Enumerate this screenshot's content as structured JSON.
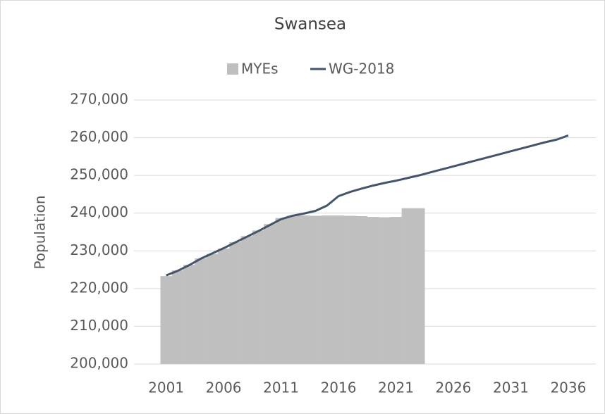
{
  "chart_data": {
    "type": "bar-line",
    "title": "Swansea",
    "y_label": "Population",
    "series": [
      {
        "name": "MYEs",
        "type": "bar",
        "color": "#bfbfbf",
        "x": [
          2001,
          2002,
          2003,
          2004,
          2005,
          2006,
          2007,
          2008,
          2009,
          2010,
          2011,
          2012,
          2013,
          2014,
          2015,
          2016,
          2017,
          2018,
          2019,
          2020,
          2021,
          2022,
          2023
        ],
        "values": [
          223300,
          224800,
          226300,
          228000,
          229200,
          230600,
          232300,
          233900,
          235400,
          237100,
          238700,
          239300,
          239400,
          239300,
          239400,
          239400,
          239300,
          239200,
          239000,
          238900,
          239000,
          241300,
          241300
        ]
      },
      {
        "name": "WG-2018",
        "type": "line",
        "color": "#44546a",
        "x": [
          2001,
          2002,
          2003,
          2004,
          2005,
          2006,
          2007,
          2008,
          2009,
          2010,
          2011,
          2012,
          2013,
          2014,
          2015,
          2016,
          2017,
          2018,
          2019,
          2020,
          2021,
          2022,
          2023,
          2024,
          2025,
          2026,
          2027,
          2028,
          2029,
          2030,
          2031,
          2032,
          2033,
          2034,
          2035,
          2036
        ],
        "values": [
          223500,
          224700,
          226200,
          227900,
          229300,
          230700,
          232200,
          233700,
          235200,
          236800,
          238400,
          239300,
          239900,
          240600,
          242000,
          244500,
          245600,
          246500,
          247300,
          248000,
          248600,
          249300,
          250000,
          250800,
          251600,
          252400,
          253200,
          254000,
          254800,
          255600,
          256400,
          257200,
          258000,
          258800,
          259500,
          260600
        ]
      }
    ],
    "xlim": [
      1998.2,
      2038.4
    ],
    "xticks": [
      2001,
      2006,
      2011,
      2016,
      2021,
      2026,
      2031,
      2036
    ],
    "ylim": [
      200000,
      270000
    ],
    "yticks": [
      {
        "value": 200000,
        "label": "200,000"
      },
      {
        "value": 210000,
        "label": "210,000"
      },
      {
        "value": 220000,
        "label": "220,000"
      },
      {
        "value": 230000,
        "label": "230,000"
      },
      {
        "value": 240000,
        "label": "240,000"
      },
      {
        "value": 250000,
        "label": "250,000"
      },
      {
        "value": 260000,
        "label": "260,000"
      },
      {
        "value": 270000,
        "label": "270,000"
      }
    ],
    "grid": true,
    "legend": "top"
  }
}
